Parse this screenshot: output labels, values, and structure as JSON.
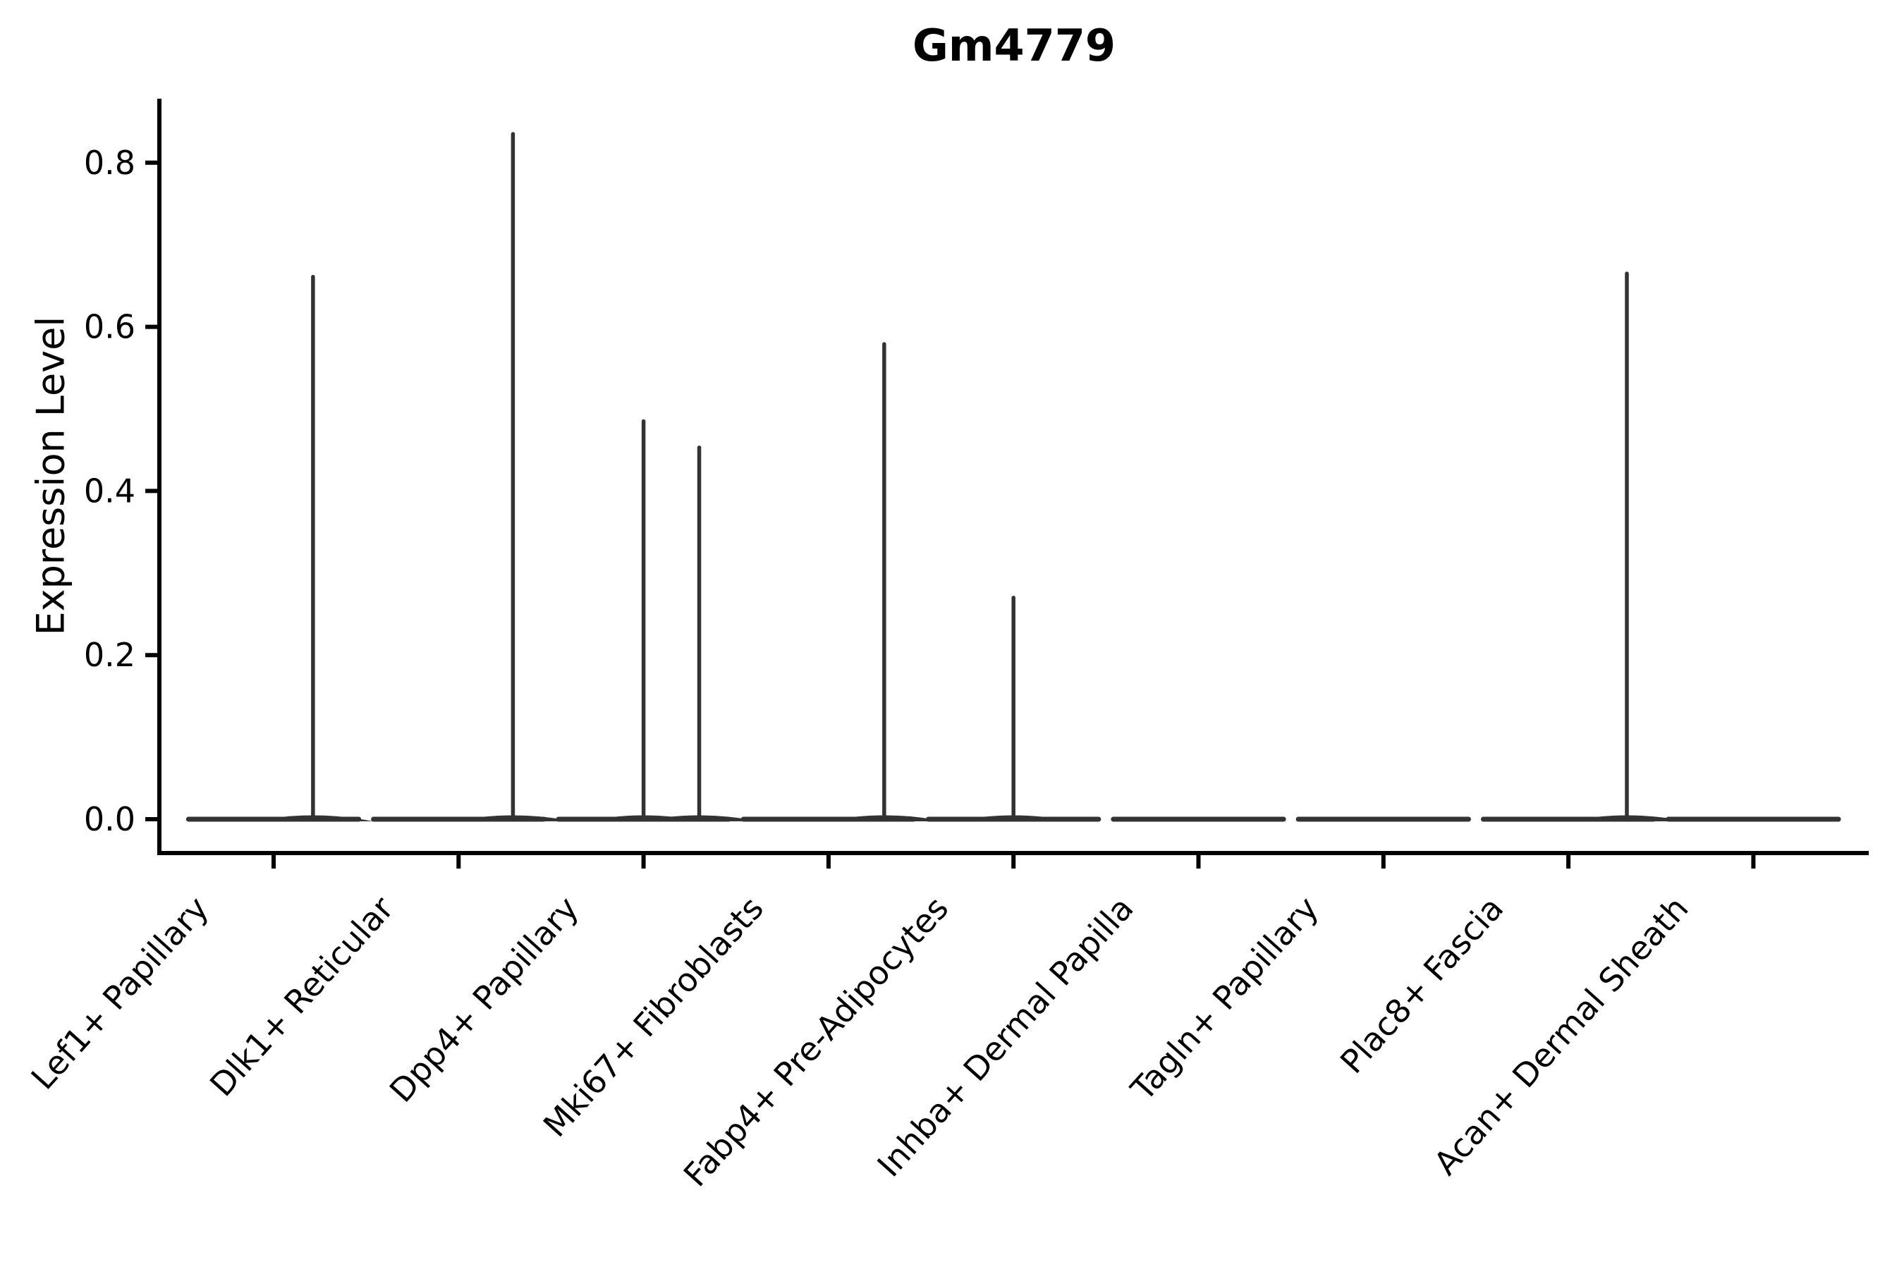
{
  "chart_data": {
    "type": "violin",
    "title": "Gm4779",
    "xlabel": "",
    "ylabel": "Expression Level",
    "ylim": [
      -0.041,
      0.878
    ],
    "ytick_values": [
      0.0,
      0.2,
      0.4,
      0.6,
      0.8
    ],
    "ytick_labels": [
      "0.0",
      "0.2",
      "0.4",
      "0.6",
      "0.8"
    ],
    "grid": false,
    "legend": null,
    "categories": [
      "Lef1+ Papillary",
      "Dlk1+ Reticular",
      "Dpp4+ Papillary",
      "Mki67+ Fibroblasts",
      "Fabp4+ Pre-Adipocytes",
      "Inhba+ Dermal Papilla",
      "Tagln+ Papillary",
      "Plac8+ Fascia",
      "Acan+ Dermal Sheath"
    ],
    "violins": [
      {
        "category": "Lef1+ Papillary",
        "base_width": 0.92,
        "base_value": 0.0,
        "spikes": [
          {
            "x_offset": 0.213,
            "max": 0.661
          }
        ]
      },
      {
        "category": "Dlk1+ Reticular",
        "base_width": 0.92,
        "base_value": 0.0,
        "spikes": [
          {
            "x_offset": 0.294,
            "max": 0.835
          }
        ]
      },
      {
        "category": "Dpp4+ Papillary",
        "base_width": 0.92,
        "base_value": 0.0,
        "spikes": [
          {
            "x_offset": 0.0,
            "max": 0.485
          },
          {
            "x_offset": 0.301,
            "max": 0.453
          }
        ]
      },
      {
        "category": "Mki67+ Fibroblasts",
        "base_width": 0.92,
        "base_value": 0.0,
        "spikes": [
          {
            "x_offset": 0.301,
            "max": 0.579
          }
        ]
      },
      {
        "category": "Fabp4+ Pre-Adipocytes",
        "base_width": 0.92,
        "base_value": 0.0,
        "spikes": [
          {
            "x_offset": 0.0,
            "max": 0.27
          }
        ]
      },
      {
        "category": "Inhba+ Dermal Papilla",
        "base_width": 0.92,
        "base_value": 0.0,
        "spikes": []
      },
      {
        "category": "Tagln+ Papillary",
        "base_width": 0.92,
        "base_value": 0.0,
        "spikes": []
      },
      {
        "category": "Plac8+ Fascia",
        "base_width": 0.92,
        "base_value": 0.0,
        "spikes": [
          {
            "x_offset": 0.316,
            "max": 0.665
          }
        ]
      },
      {
        "category": "Acan+ Dermal Sheath",
        "base_width": 0.92,
        "base_value": 0.0,
        "spikes": []
      }
    ],
    "colors": {
      "violin_edge": "#333333",
      "axis": "#000000",
      "text": "#000000",
      "background": "#ffffff"
    }
  }
}
